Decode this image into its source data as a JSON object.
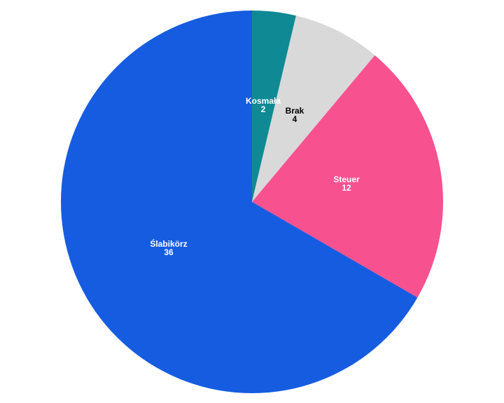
{
  "chart_data": {
    "type": "pie",
    "categories": [
      "Kosmała",
      "Brak",
      "Steuer",
      "Ślabikörz"
    ],
    "values": [
      2,
      4,
      12,
      36
    ],
    "colors": [
      "#0f8a94",
      "#d9d9d9",
      "#f75190",
      "#165ce0"
    ],
    "label_colors": [
      "#ffffff",
      "#000000",
      "#ffffff",
      "#ffffff"
    ],
    "start_angle_deg": 0,
    "direction": "clockwise",
    "legend": "none"
  }
}
